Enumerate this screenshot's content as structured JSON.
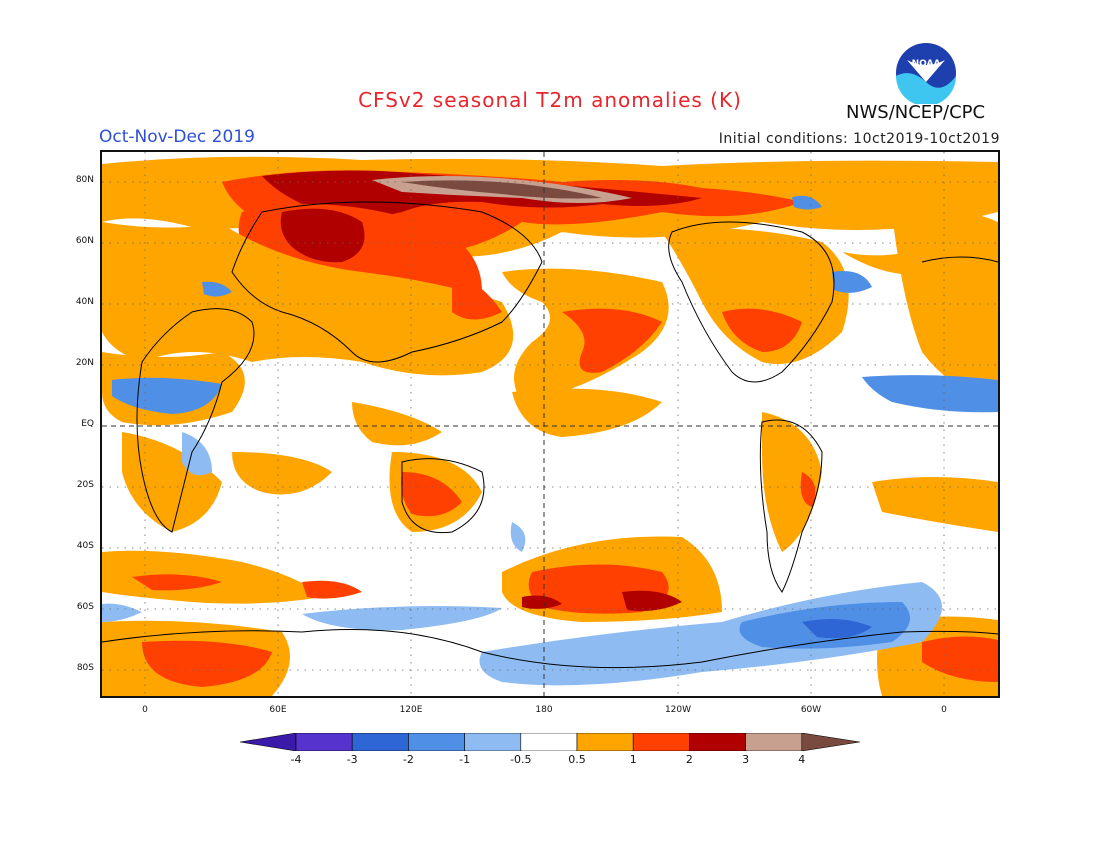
{
  "header": {
    "title": "CFSv2 seasonal T2m anomalies (K)",
    "period": "Oct-Nov-Dec 2019",
    "initial_conditions": "Initial conditions: 10ct2019-10ct2019",
    "agency": "NWS/NCEP/CPC",
    "logo_text": "NOAA"
  },
  "map": {
    "lat_labels": [
      "80N",
      "60N",
      "40N",
      "20N",
      "EQ",
      "20S",
      "40S",
      "60S",
      "80S"
    ],
    "lon_labels": [
      "0",
      "60E",
      "120E",
      "180",
      "120W",
      "60W",
      "0"
    ]
  },
  "colorbar": {
    "labels": [
      "-4",
      "-3",
      "-2",
      "-1",
      "-0.5",
      "0.5",
      "1",
      "2",
      "3",
      "4"
    ],
    "colors": [
      "#3a1aa8",
      "#5533cc",
      "#2f66d6",
      "#4f8fe6",
      "#8ebcf2",
      "#ffffff",
      "#ffa500",
      "#ff4000",
      "#b00000",
      "#c7a08f",
      "#7a4a3e"
    ],
    "units": "K"
  }
}
